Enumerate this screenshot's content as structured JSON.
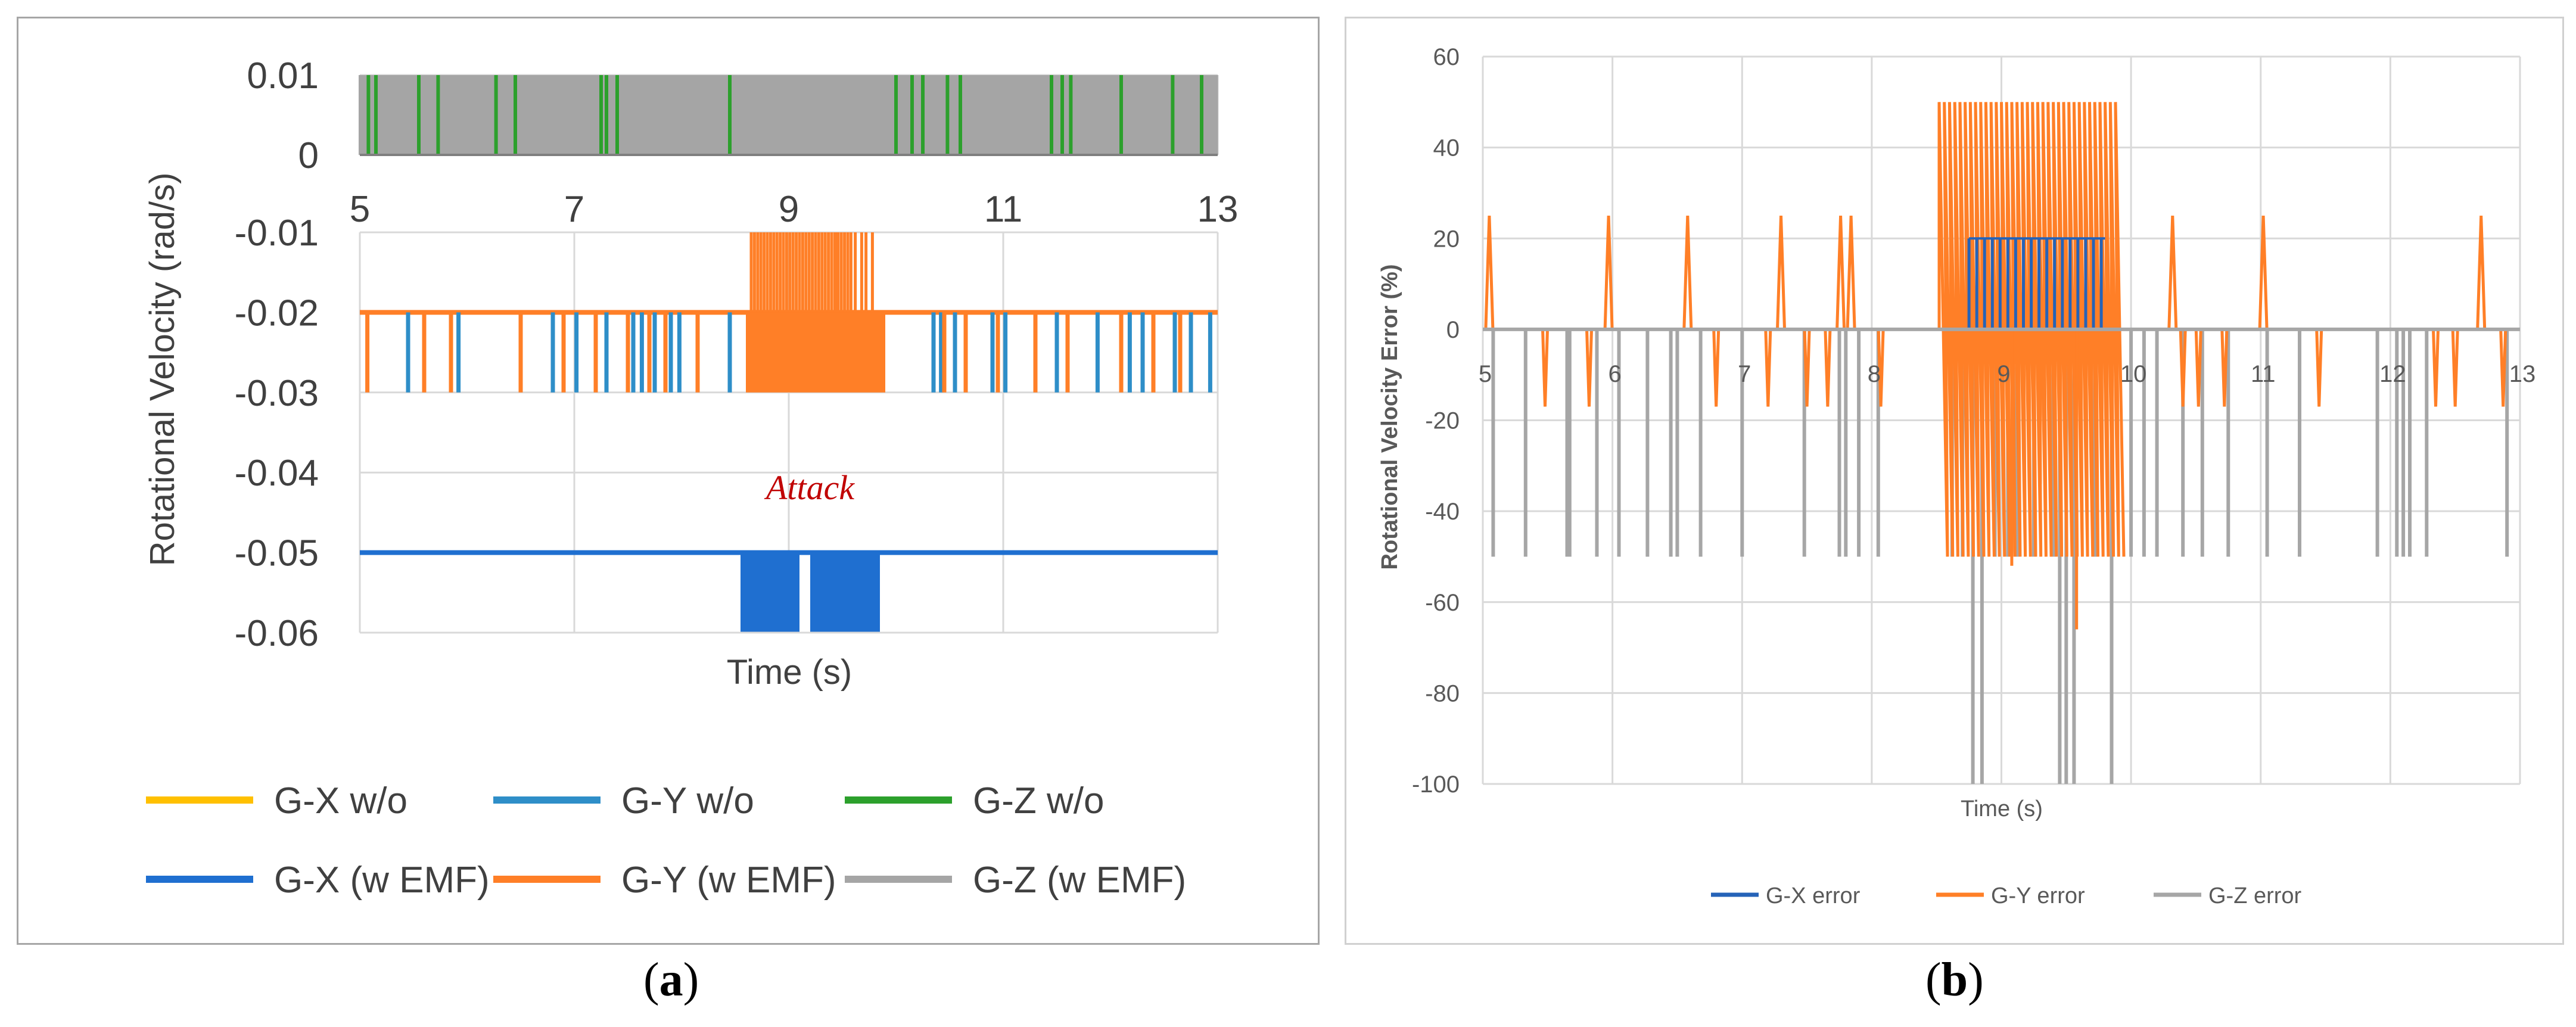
{
  "captions": {
    "a": "(a)",
    "b": "(b)",
    "a_letter": "a",
    "b_letter": "b"
  },
  "chart_data": [
    {
      "id": "a",
      "type": "line",
      "xlabel": "Time (s)",
      "ylabel": "Rotational Velocity (rad/s)",
      "annotation": "Attack",
      "colors": {
        "gx_wo": "#ffc000",
        "gy_wo": "#2e8ec8",
        "gz_wo": "#2ca02c",
        "gx_w": "#1f6fd0",
        "gy_w": "#ff7f27",
        "gz_w": "#a5a5a5"
      },
      "xlim": [
        5,
        13
      ],
      "xticks": [
        "5",
        "7",
        "9",
        "11",
        "13"
      ],
      "upper_axis": {
        "ylim": [
          0,
          0.01
        ],
        "yticks": [
          "0.01",
          "0"
        ]
      },
      "lower_axis": {
        "ylim": [
          -0.06,
          -0.01
        ],
        "yticks": [
          "-0.01",
          "-0.02",
          "-0.03",
          "-0.04",
          "-0.05",
          "-0.06"
        ]
      },
      "legend": [
        "G-X w/o",
        "G-Y w/o",
        "G-Z w/o",
        "G-X (w EMF)",
        "G-Y (w EMF)",
        "G-Z (w EMF)"
      ],
      "series": [
        {
          "name": "G-X w/o",
          "baseline": -0.05,
          "spikes_to": -0.05,
          "spike_times": []
        },
        {
          "name": "G-Y w/o",
          "baseline": -0.02,
          "spikes_to": -0.03,
          "spike_times": [
            5.45,
            5.92,
            6.8,
            7.02,
            7.3,
            7.55,
            7.63,
            7.75,
            7.9,
            7.98,
            8.45,
            10.35,
            10.42,
            10.55,
            10.9,
            11.02,
            11.5,
            11.88,
            12.18,
            12.3,
            12.6,
            12.75,
            12.93
          ]
        },
        {
          "name": "G-Z w/o",
          "baseline": 0.01,
          "spikes_to": 0,
          "spike_times": [
            5.08,
            5.15,
            5.55,
            5.73,
            6.27,
            6.45,
            7.25,
            7.3,
            7.4,
            8.45,
            10.0,
            10.15,
            10.25,
            10.48,
            10.6,
            11.45,
            11.55,
            11.63,
            12.1,
            12.58,
            12.85
          ]
        },
        {
          "name": "G-X (w EMF)",
          "baseline": -0.05,
          "burst": {
            "start": 8.55,
            "end": 9.85,
            "low": -0.06,
            "gap": [
              9.1,
              9.2
            ]
          }
        },
        {
          "name": "G-Y (w EMF)",
          "baseline": -0.02,
          "spikes_to": -0.03,
          "spike_times": [
            5.07,
            5.6,
            5.85,
            6.5,
            6.9,
            7.2,
            7.5,
            7.7,
            7.85,
            8.15,
            10.45,
            10.65,
            10.95,
            11.3,
            11.6,
            12.1,
            12.4,
            12.65
          ],
          "burst": {
            "start": 8.6,
            "end": 9.9,
            "low": -0.03,
            "high": -0.01
          }
        },
        {
          "name": "G-Z (w EMF)",
          "baseline": 0.01,
          "dense_toggle": true,
          "low": 0,
          "high": 0.01
        }
      ]
    },
    {
      "id": "b",
      "type": "line",
      "xlabel": "Time (s)",
      "ylabel": "Rotational Velocity Error (%)",
      "colors": {
        "gx": "#2563b8",
        "gy": "#ff7f27",
        "gz": "#a6a6a6"
      },
      "xlim": [
        5,
        13
      ],
      "ylim": [
        -100,
        60
      ],
      "xticks": [
        "5",
        "6",
        "7",
        "8",
        "9",
        "10",
        "11",
        "12",
        "13"
      ],
      "yticks": [
        "60",
        "40",
        "20",
        "0",
        "-20",
        "-40",
        "-60",
        "-80",
        "-100"
      ],
      "legend": [
        "G-X error",
        "G-Y error",
        "G-Z error"
      ],
      "series": [
        {
          "name": "G-X error",
          "baseline": 0,
          "burst": {
            "start": 8.75,
            "end": 9.8,
            "high": 20,
            "low": 0
          }
        },
        {
          "name": "G-Y error",
          "baseline": 0,
          "spikes_up": {
            "value": 25,
            "times": [
              5.05,
              5.97,
              6.58,
              7.3,
              7.76,
              7.84,
              10.32,
              11.02,
              12.7
            ]
          },
          "spikes_down": {
            "value": -17,
            "times": [
              5.48,
              5.82,
              6.8,
              7.2,
              7.5,
              7.66,
              8.07,
              10.4,
              10.52,
              10.72,
              11.45,
              12.35,
              12.5,
              12.87
            ]
          },
          "burst": {
            "start": 8.52,
            "end": 9.88,
            "high": 50,
            "low": -50,
            "extra_low": [
              -66,
              -52,
              -34
            ]
          }
        },
        {
          "name": "G-Z error",
          "baseline": 0,
          "spikes_down": {
            "value": -50,
            "times": [
              5.08,
              5.33,
              5.65,
              5.67,
              5.88,
              6.05,
              6.27,
              6.45,
              6.5,
              6.68,
              7.0,
              7.48,
              7.75,
              7.8,
              7.9,
              8.05,
              8.62,
              8.7,
              8.78,
              8.85,
              8.95,
              9.05,
              9.12,
              9.25,
              9.4,
              9.57,
              9.72,
              9.85,
              10.0,
              10.1,
              10.2,
              10.4,
              10.55,
              10.75,
              11.05,
              11.3,
              11.9,
              12.05,
              12.1,
              12.15,
              12.28,
              12.9
            ]
          },
          "spikes_deep": {
            "value": -100,
            "times": [
              8.78,
              8.85,
              9.45,
              9.5,
              9.56,
              9.85
            ]
          }
        }
      ]
    }
  ]
}
